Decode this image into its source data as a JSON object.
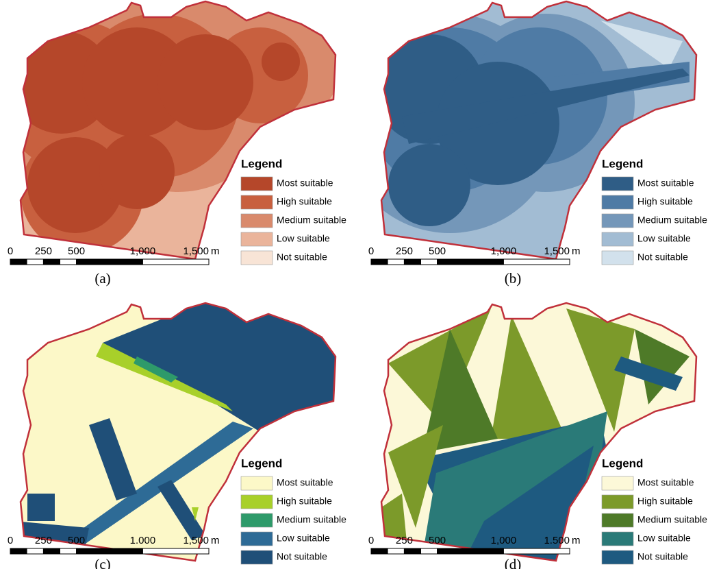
{
  "panels": [
    {
      "label": "(a)",
      "legend": {
        "title": "Legend",
        "items": [
          {
            "name": "Most suitable",
            "color": "#b5472a"
          },
          {
            "name": "High suitable",
            "color": "#c8603f"
          },
          {
            "name": "Medium suitable",
            "color": "#d98a6c"
          },
          {
            "name": "Low suitable",
            "color": "#eab49b"
          },
          {
            "name": "Not suitable",
            "color": "#f8e4d6"
          }
        ]
      },
      "scale": {
        "labels": [
          "0",
          "250",
          "500",
          "1,000",
          "1,500"
        ],
        "unit": "m"
      }
    },
    {
      "label": "(b)",
      "legend": {
        "title": "Legend",
        "items": [
          {
            "name": "Most suitable",
            "color": "#2f5d86"
          },
          {
            "name": "High suitable",
            "color": "#4f7ba5"
          },
          {
            "name": "Medium suitable",
            "color": "#7497b9"
          },
          {
            "name": "Low suitable",
            "color": "#a2bcd3"
          },
          {
            "name": "Not suitable",
            "color": "#d2e1ec"
          }
        ]
      },
      "scale": {
        "labels": [
          "0",
          "250",
          "500",
          "1,000",
          "1,500"
        ],
        "unit": "m"
      }
    },
    {
      "label": "(c)",
      "legend": {
        "title": "Legend",
        "items": [
          {
            "name": "Most suitable",
            "color": "#fcf8c8"
          },
          {
            "name": "High suitable",
            "color": "#a8d02a"
          },
          {
            "name": "Medium suitable",
            "color": "#2e9a6a"
          },
          {
            "name": "Low suitable",
            "color": "#2e6b96"
          },
          {
            "name": "Not suitable",
            "color": "#1f4f78"
          }
        ]
      },
      "scale": {
        "labels": [
          "0",
          "250",
          "500",
          "1.000",
          "1,500"
        ],
        "unit": "m"
      }
    },
    {
      "label": "(d)",
      "legend": {
        "title": "Legend",
        "items": [
          {
            "name": "Most suitable",
            "color": "#fcf8d8"
          },
          {
            "name": "High suitable",
            "color": "#7c9a2a"
          },
          {
            "name": "Medium suitable",
            "color": "#4e7a28"
          },
          {
            "name": "Low suitable",
            "color": "#2a7a78"
          },
          {
            "name": "Not suitable",
            "color": "#1e5a80"
          }
        ]
      },
      "scale": {
        "labels": [
          "0",
          "250",
          "500",
          "1,000",
          "1.500"
        ],
        "unit": "m"
      }
    }
  ]
}
